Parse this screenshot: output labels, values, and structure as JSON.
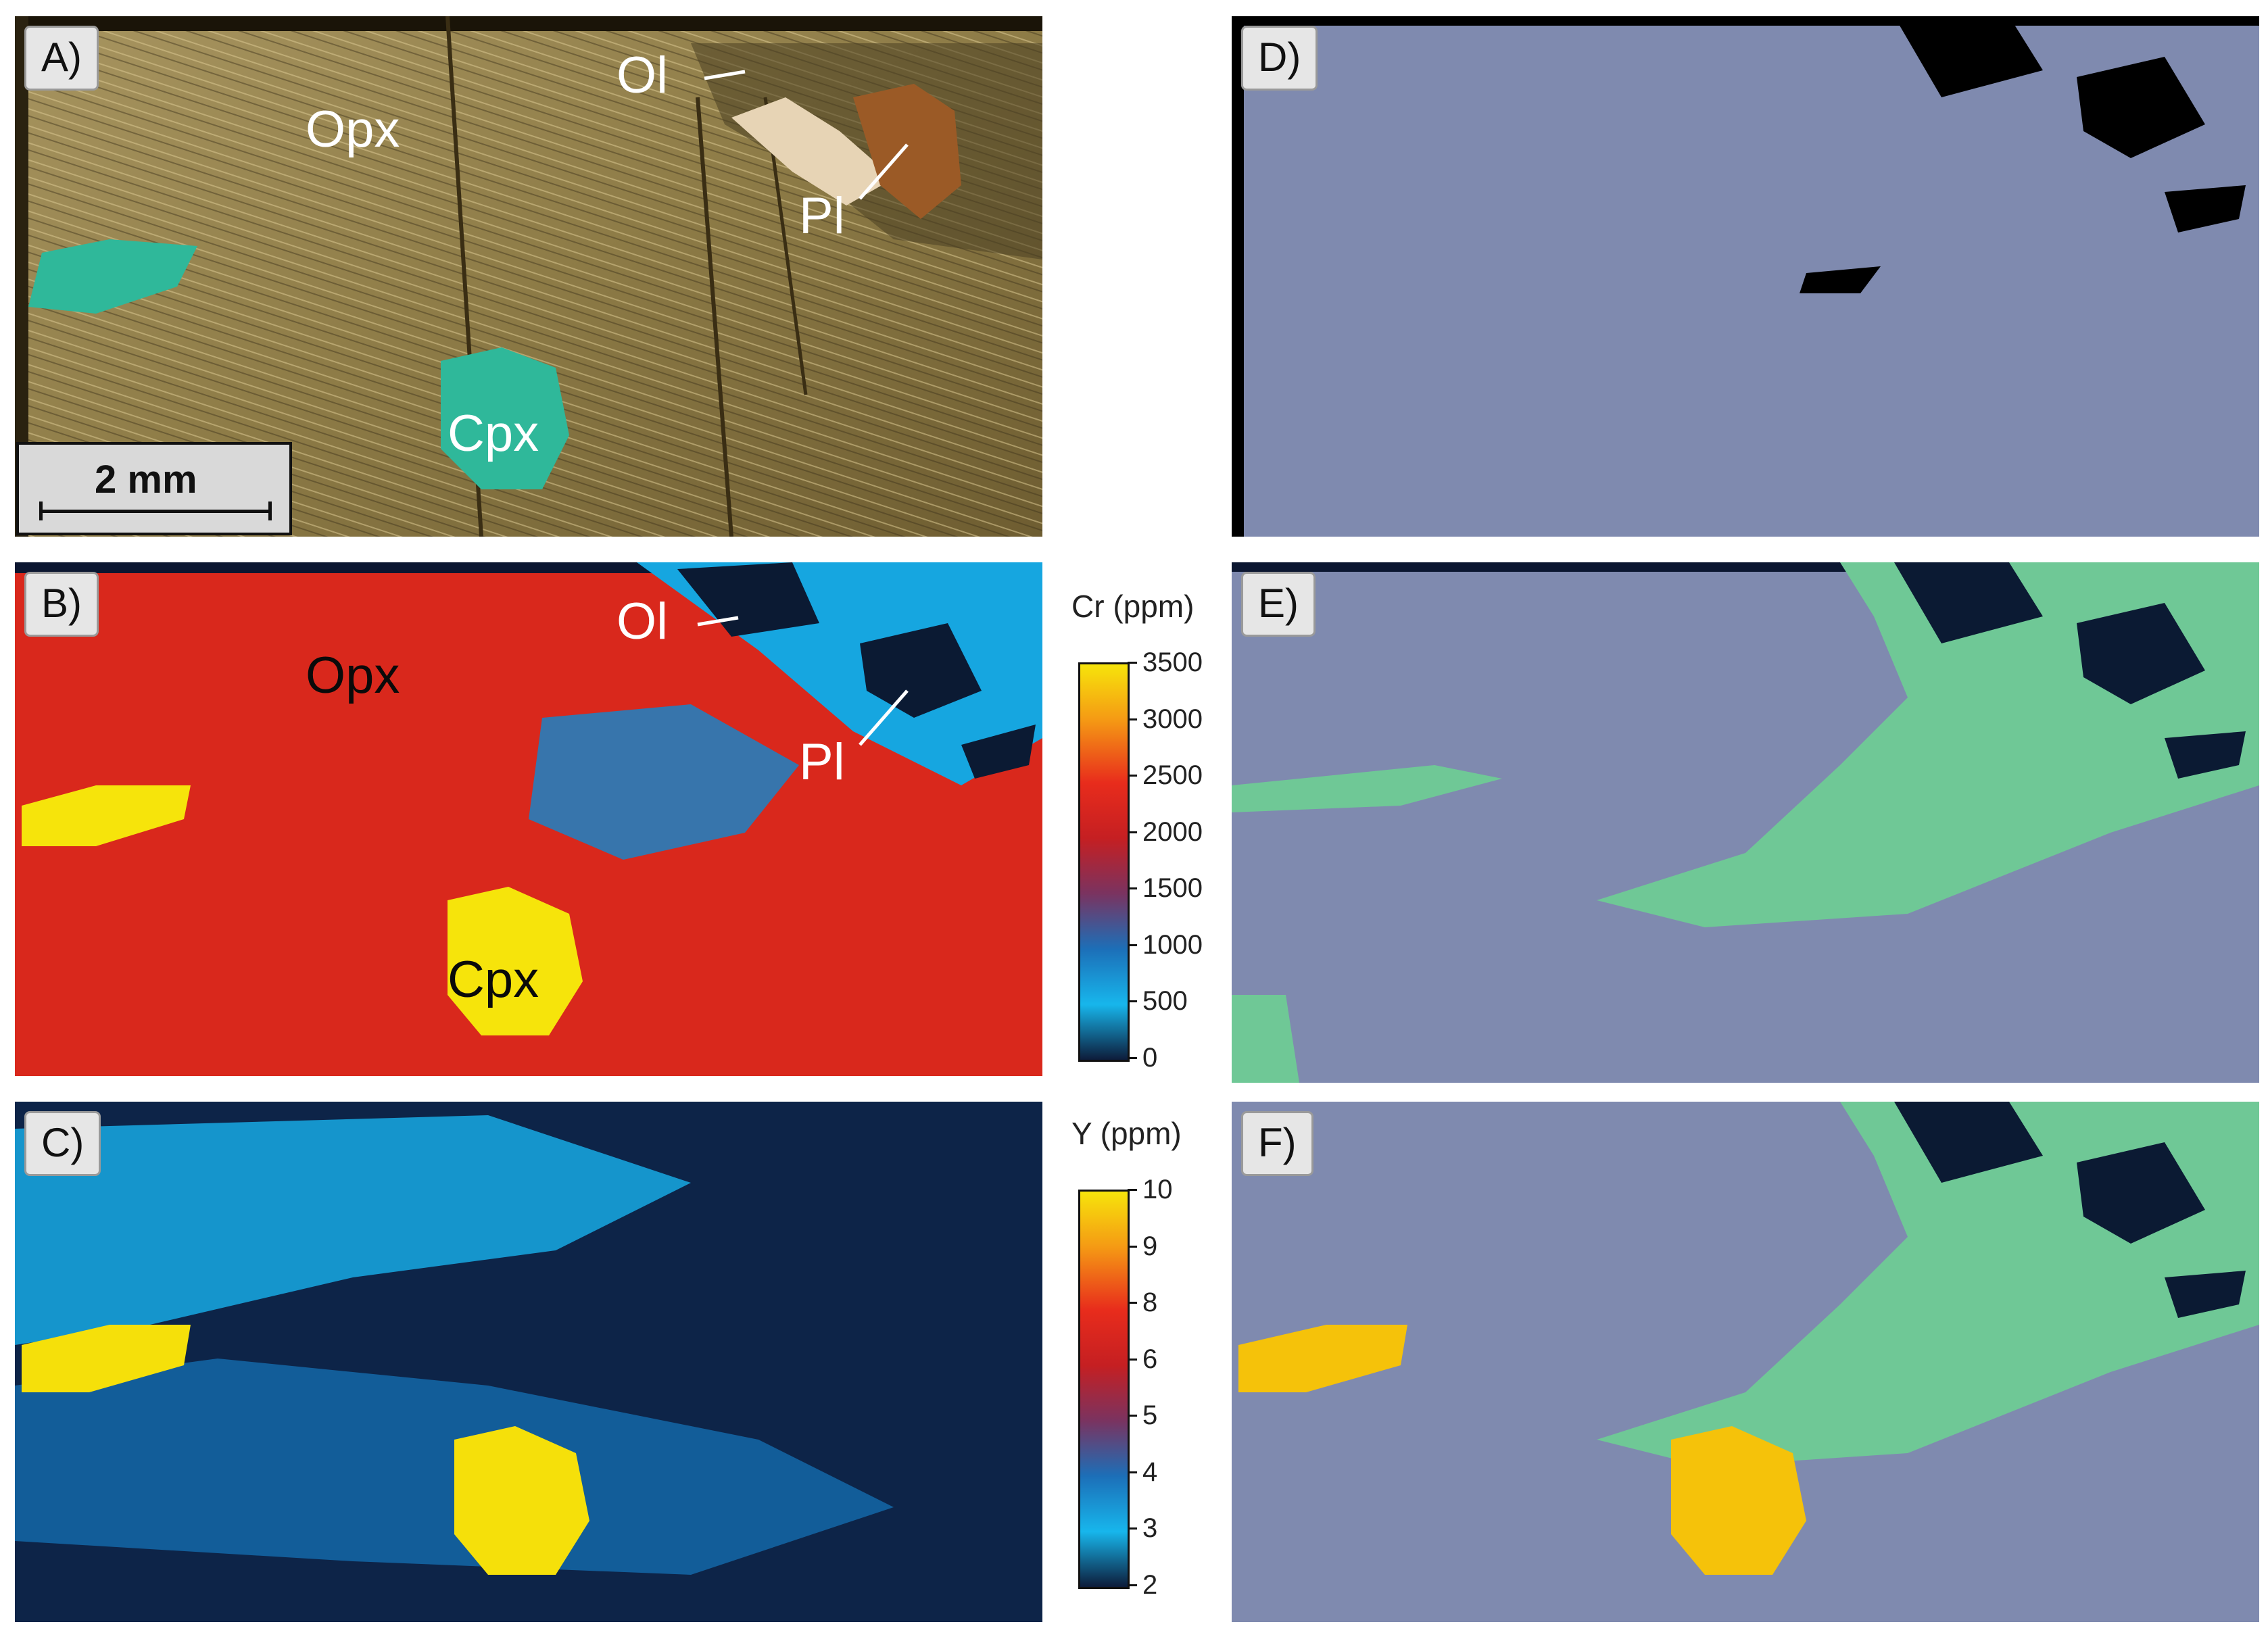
{
  "panels": {
    "a": {
      "label": "A)",
      "minerals": {
        "opx": "Opx",
        "ol": "Ol",
        "pl": "Pl",
        "cpx": "Cpx"
      },
      "scale_bar": "2 mm"
    },
    "b": {
      "label": "B)",
      "minerals": {
        "opx": "Opx",
        "ol": "Ol",
        "pl": "Pl",
        "cpx": "Cpx"
      }
    },
    "c": {
      "label": "C)"
    },
    "d": {
      "label": "D)"
    },
    "e": {
      "label": "E)"
    },
    "f": {
      "label": "F)"
    }
  },
  "colorbars": {
    "cr": {
      "title": "Cr (ppm)",
      "ticks": [
        "3500",
        "3000",
        "2500",
        "2000",
        "1500",
        "1000",
        "500",
        "0"
      ],
      "colors": [
        "#f6e40b",
        "#f59a14",
        "#e82c1c",
        "#c51f22",
        "#7a3360",
        "#1c6fb8",
        "#17b6ec",
        "#0d1c3a"
      ]
    },
    "y": {
      "title": "Y (ppm)",
      "ticks": [
        "10",
        "9",
        "8",
        "6",
        "5",
        "4",
        "3",
        "2"
      ],
      "colors": [
        "#f6e40b",
        "#f59a14",
        "#e82c1c",
        "#c51f22",
        "#7a3360",
        "#1c6fb8",
        "#17b6ec",
        "#0d1c3a"
      ]
    }
  },
  "colors": {
    "opx_photo": "#9c8a52",
    "cpx_photo": "#2fb89a",
    "cr_high": "#d9281c",
    "cr_low": "#16a6e0",
    "y_bg_dark": "#0d2448",
    "y_mid": "#18a9e4",
    "hot_yellow": "#f5e00a",
    "cluster_grey": "#7f8aaf",
    "cluster_green": "#6fc896",
    "cluster_dark": "#0b1a33",
    "black": "#000000"
  }
}
